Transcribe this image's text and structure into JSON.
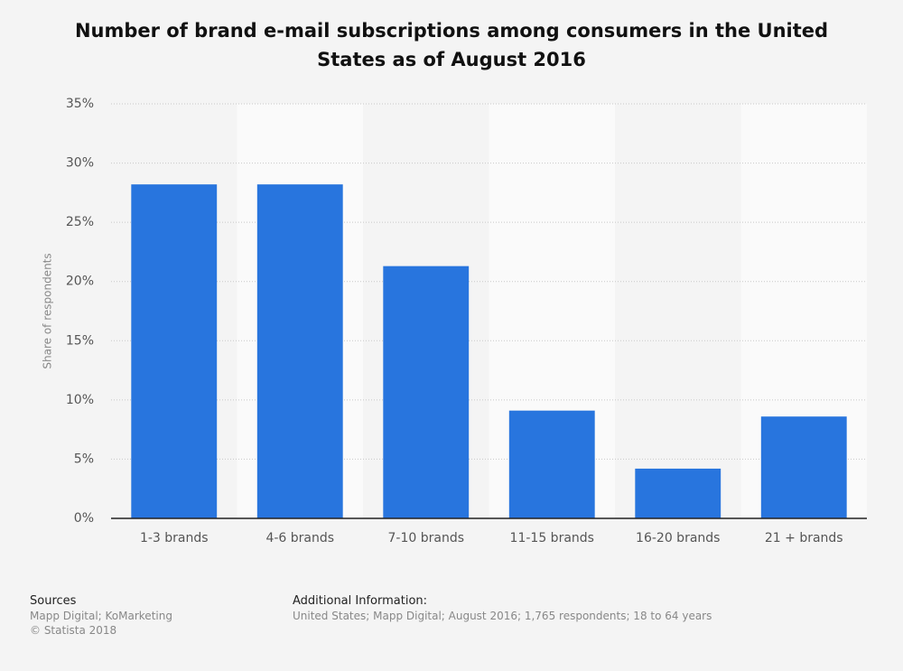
{
  "chart_data": {
    "type": "bar",
    "title": "Number of brand e-mail subscriptions among consumers in the United States as of August 2016",
    "y_label": "Share of respondents",
    "categories": [
      "1-3 brands",
      "4-6 brands",
      "7-10 brands",
      "11-15 brands",
      "16-20 brands",
      "21 + brands"
    ],
    "values": [
      28.2,
      28.2,
      21.3,
      9.1,
      4.2,
      8.6
    ],
    "color": "#2875de",
    "ylim": [
      0,
      35
    ],
    "yticks": [
      {
        "value": 0,
        "label": "0%"
      },
      {
        "value": 5,
        "label": "5%"
      },
      {
        "value": 10,
        "label": "10%"
      },
      {
        "value": 15,
        "label": "15%"
      },
      {
        "value": 20,
        "label": "20%"
      },
      {
        "value": 25,
        "label": "25%"
      },
      {
        "value": 30,
        "label": "30%"
      },
      {
        "value": 35,
        "label": "35%"
      }
    ],
    "grid": true
  },
  "footer": {
    "sources_title": "Sources",
    "sources": "Mapp Digital; KoMarketing",
    "copyright": "© Statista 2018",
    "info_title": "Additional Information:",
    "info": "United States; Mapp Digital; August 2016; 1,765 respondents; 18 to 64 years"
  }
}
